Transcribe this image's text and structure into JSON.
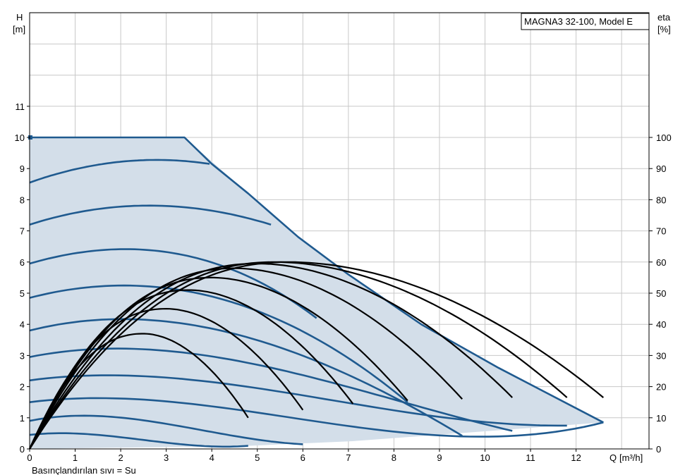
{
  "chart_data": {
    "type": "line",
    "title": "MAGNA3 32-100, Model E",
    "xlabel": "Q [m³/h]",
    "xlabel_name": "Q",
    "xlabel_unit": "[m³/h]",
    "ylabel_left_name": "H",
    "ylabel_left_unit": "[m]",
    "ylabel_right_name": "eta",
    "ylabel_right_unit": "[%]",
    "footnote": "Basınçlandırılan sıvı = Su",
    "xlim": [
      0,
      13.5
    ],
    "ylim_left": [
      0,
      14
    ],
    "ylim_right": [
      0,
      140
    ],
    "x_ticks": [
      "0",
      "1",
      "2",
      "3",
      "4",
      "5",
      "6",
      "7",
      "8",
      "9",
      "10",
      "11",
      "12"
    ],
    "y_left_ticks": [
      "0",
      "1",
      "2",
      "3",
      "4",
      "5",
      "6",
      "7",
      "8",
      "9",
      "10",
      "11"
    ],
    "y_right_ticks": [
      "0",
      "10",
      "20",
      "30",
      "40",
      "50",
      "60",
      "70",
      "80",
      "90",
      "100"
    ],
    "grid": true,
    "colors": {
      "head": "#1f5a8f",
      "eta": "#000000",
      "area": "#d3dee9",
      "grid": "#c8c8c8"
    },
    "operating_area": {
      "x": [
        0,
        3.4,
        4.8,
        5.9,
        7.0,
        8.6,
        10.3,
        12.6,
        7.1,
        4.8,
        0
      ],
      "y": [
        10.0,
        10.0,
        8.2,
        6.8,
        5.6,
        4.0,
        2.6,
        0.85,
        0.25,
        0.1,
        0.0
      ]
    },
    "head_curves": [
      {
        "h0": 10.0,
        "flat_to": 3.4,
        "q_end": 3.4,
        "h_end": 10.0
      },
      {
        "h0": 8.55,
        "q_peak": 2.8,
        "h_peak": 9.28,
        "q_end": 3.95,
        "h_end": 9.15
      },
      {
        "h0": 7.2,
        "q_peak": 2.55,
        "h_peak": 7.8,
        "q_end": 5.3,
        "h_end": 7.2
      },
      {
        "h0": 5.95,
        "q_peak": 2.35,
        "h_peak": 6.45,
        "q_end": 6.3,
        "h_end": 4.2
      },
      {
        "h0": 4.85,
        "q_peak": 2.1,
        "h_peak": 5.25,
        "q_end": 8.3,
        "h_end": 1.5
      },
      {
        "h0": 3.8,
        "q_peak": 1.9,
        "h_peak": 4.15,
        "q_end": 9.5,
        "h_end": 0.42
      },
      {
        "h0": 2.95,
        "q_peak": 1.7,
        "h_peak": 3.2,
        "q_end": 10.6,
        "h_end": 0.58
      },
      {
        "h0": 2.2,
        "q_peak": 1.5,
        "h_peak": 2.35,
        "q_end": 11.8,
        "h_end": 0.75
      },
      {
        "h0": 1.5,
        "q_peak": 1.3,
        "h_peak": 1.62,
        "q_end": 12.6,
        "h_end": 0.85
      },
      {
        "h0": 0.9,
        "q_peak": 1.0,
        "h_peak": 1.05,
        "q_end": 6.0,
        "h_end": 0.15
      },
      {
        "h0": 0.45,
        "q_peak": 0.6,
        "h_peak": 0.5,
        "q_end": 4.8,
        "h_end": 0.1
      }
    ],
    "eta_curves": [
      {
        "q_peak": 2.5,
        "eta_peak": 37,
        "q_end": 4.8,
        "eta_end": 10
      },
      {
        "q_peak": 3.0,
        "eta_peak": 45,
        "q_end": 6.0,
        "eta_end": 12.5
      },
      {
        "q_peak": 3.5,
        "eta_peak": 51,
        "q_end": 7.1,
        "eta_end": 14.5
      },
      {
        "q_peak": 4.0,
        "eta_peak": 55,
        "q_end": 8.3,
        "eta_end": 15.5
      },
      {
        "q_peak": 4.5,
        "eta_peak": 58,
        "q_end": 9.5,
        "eta_end": 16
      },
      {
        "q_peak": 5.0,
        "eta_peak": 59.5,
        "q_end": 10.6,
        "eta_end": 16.5
      },
      {
        "q_peak": 5.4,
        "eta_peak": 60,
        "q_end": 11.8,
        "eta_end": 16.5
      },
      {
        "q_peak": 5.7,
        "eta_peak": 60,
        "q_end": 12.6,
        "eta_end": 16.5
      }
    ]
  }
}
